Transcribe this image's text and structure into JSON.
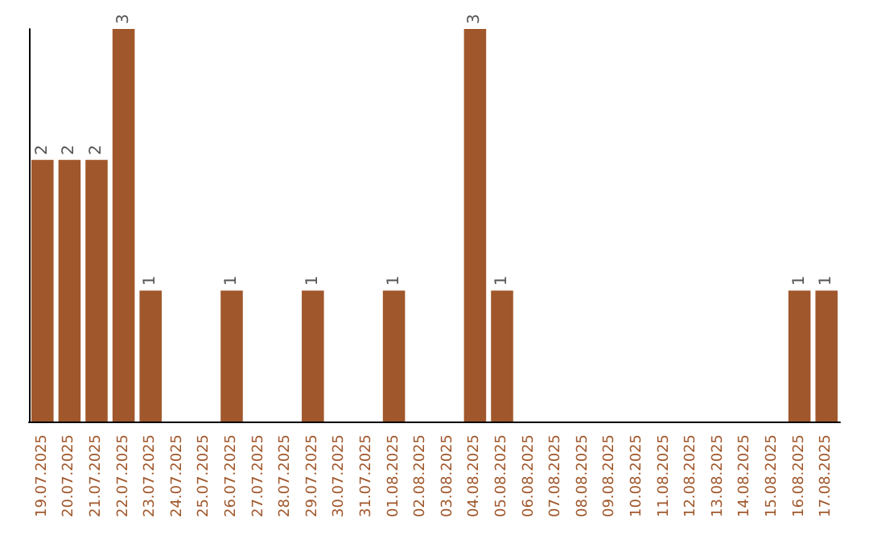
{
  "chart_data": {
    "type": "bar",
    "categories": [
      "19.07.2025",
      "20.07.2025",
      "21.07.2025",
      "22.07.2025",
      "23.07.2025",
      "24.07.2025",
      "25.07.2025",
      "26.07.2025",
      "27.07.2025",
      "28.07.2025",
      "29.07.2025",
      "30.07.2025",
      "31.07.2025",
      "01.08.2025",
      "02.08.2025",
      "03.08.2025",
      "04.08.2025",
      "05.08.2025",
      "06.08.2025",
      "07.08.2025",
      "08.08.2025",
      "09.08.2025",
      "10.08.2025",
      "11.08.2025",
      "12.08.2025",
      "13.08.2025",
      "14.08.2025",
      "15.08.2025",
      "16.08.2025",
      "17.08.2025"
    ],
    "values": [
      2,
      2,
      2,
      3,
      1,
      0,
      0,
      1,
      0,
      0,
      1,
      0,
      0,
      1,
      0,
      0,
      3,
      1,
      0,
      0,
      0,
      0,
      0,
      0,
      0,
      0,
      0,
      0,
      1,
      1
    ],
    "value_labels": [
      "2",
      "2",
      "2",
      "3",
      "1",
      null,
      null,
      "1",
      null,
      null,
      "1",
      null,
      null,
      "1",
      null,
      null,
      "3",
      "1",
      null,
      null,
      null,
      null,
      null,
      null,
      null,
      null,
      null,
      null,
      "1",
      "1"
    ],
    "color": "#a0572b",
    "grid": false
  }
}
